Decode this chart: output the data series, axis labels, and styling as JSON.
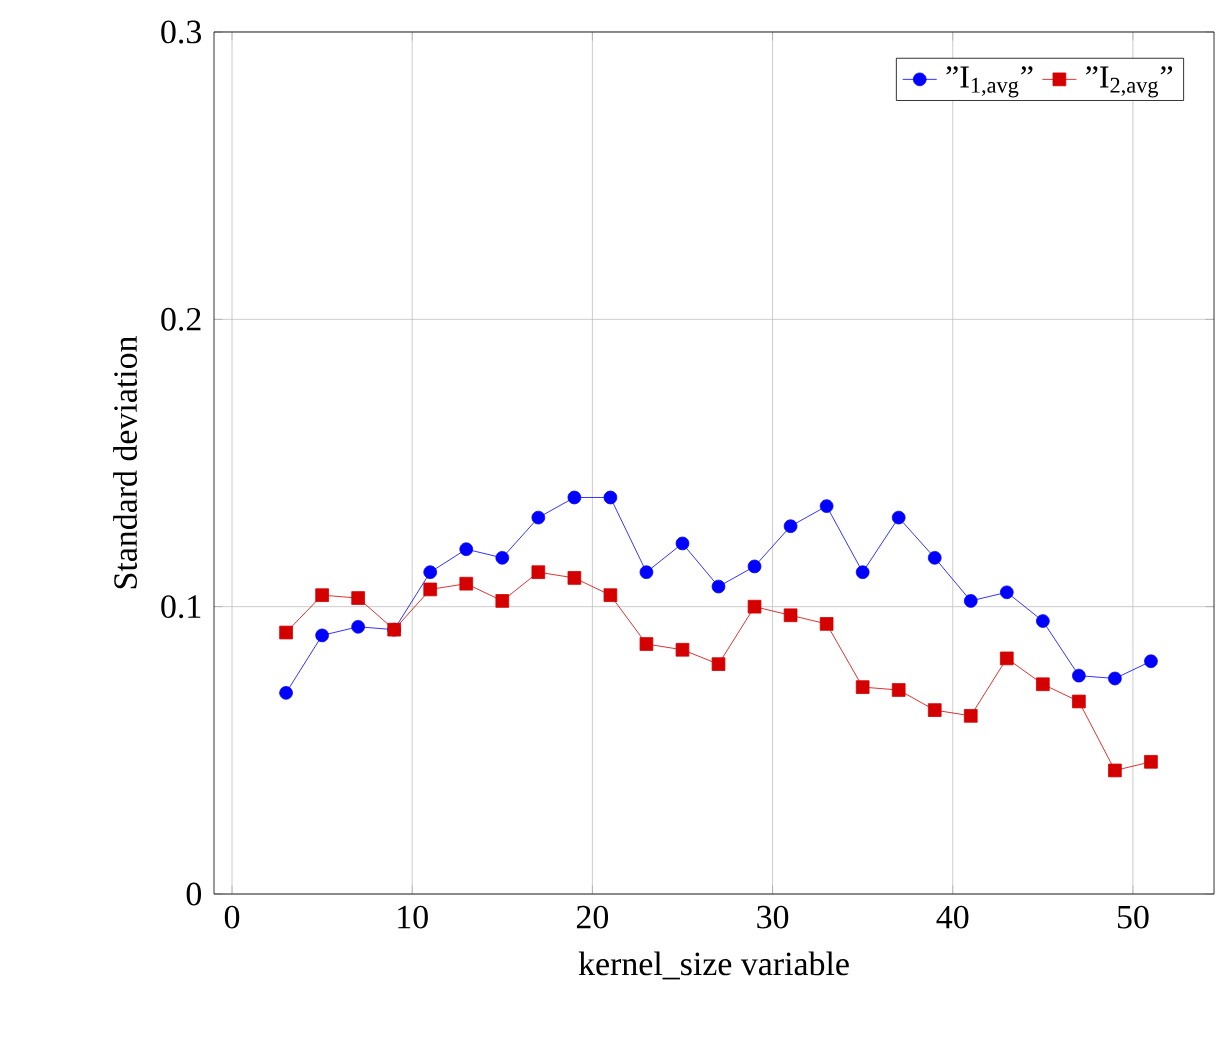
{
  "chart_data": {
    "type": "line",
    "xlabel": "kernel_size variable",
    "ylabel": "Standard deviation",
    "x": [
      3,
      5,
      7,
      9,
      11,
      13,
      15,
      17,
      19,
      21,
      23,
      25,
      27,
      29,
      31,
      33,
      35,
      37,
      39,
      41,
      43,
      45,
      47,
      49,
      51
    ],
    "series": [
      {
        "name": "”I$_{1,avg}$”",
        "color": "#0000ff",
        "marker": "circle",
        "values": [
          0.07,
          0.09,
          0.093,
          0.092,
          0.112,
          0.12,
          0.117,
          0.131,
          0.138,
          0.138,
          0.112,
          0.122,
          0.107,
          0.114,
          0.128,
          0.135,
          0.112,
          0.131,
          0.117,
          0.102,
          0.105,
          0.095,
          0.076,
          0.075,
          0.081
        ]
      },
      {
        "name": "”I$_{2,avg}$”",
        "color": "#d40000",
        "marker": "square",
        "values": [
          0.091,
          0.104,
          0.103,
          0.092,
          0.106,
          0.108,
          0.102,
          0.112,
          0.11,
          0.104,
          0.087,
          0.085,
          0.08,
          0.1,
          0.097,
          0.094,
          0.072,
          0.071,
          0.064,
          0.062,
          0.082,
          0.073,
          0.067,
          0.043,
          0.046
        ]
      }
    ],
    "xlim": [
      -1,
      54.5
    ],
    "ylim": [
      0,
      0.3
    ],
    "xticks": [
      0,
      10,
      20,
      30,
      40,
      50
    ],
    "yticks": [
      0,
      0.1,
      0.2,
      0.3
    ],
    "grid": true,
    "legend": "top right",
    "line_style": "solid"
  }
}
